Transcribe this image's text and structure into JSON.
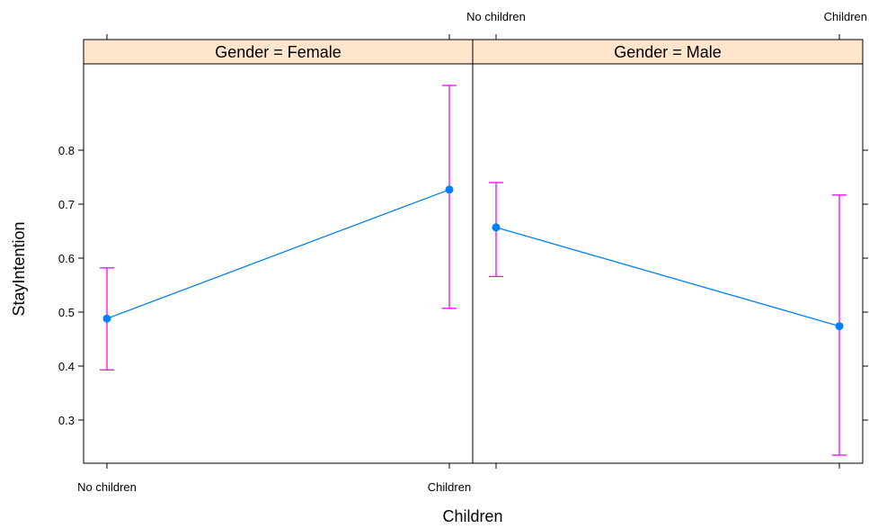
{
  "chart_data": {
    "type": "line",
    "xlabel": "Children",
    "ylabel": "StayIntention",
    "categories": [
      "No children",
      "Children"
    ],
    "yticks": [
      0.3,
      0.4,
      0.5,
      0.6,
      0.7,
      0.8
    ],
    "ylim": [
      0.22,
      0.96
    ],
    "grid": false,
    "colors": {
      "line": "#0080ff",
      "point": "#0080ff",
      "errorbar": "#ff00ff",
      "strip": "#ffe5cc",
      "frame": "#000000"
    },
    "panels": [
      {
        "strip": "Gender = Female",
        "values": [
          0.488,
          0.727
        ],
        "lower": [
          0.393,
          0.507
        ],
        "upper": [
          0.582,
          0.92
        ]
      },
      {
        "strip": "Gender = Male",
        "values": [
          0.657,
          0.474
        ],
        "lower": [
          0.566,
          0.235
        ],
        "upper": [
          0.74,
          0.717
        ]
      }
    ]
  }
}
